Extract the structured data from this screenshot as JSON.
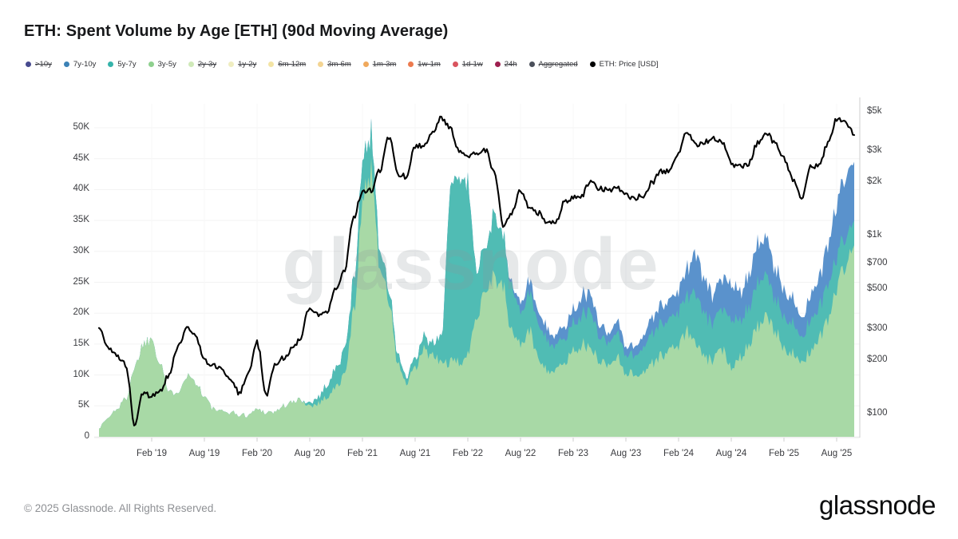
{
  "title": "ETH: Spent Volume by Age [ETH] (90d Moving Average)",
  "legend": {
    "items": [
      {
        "label": ">10y",
        "color": "#474a8f",
        "enabled": false
      },
      {
        "label": "7y-10y",
        "color": "#3c82b6",
        "enabled": true
      },
      {
        "label": "5y-7y",
        "color": "#35b3aa",
        "enabled": true
      },
      {
        "label": "3y-5y",
        "color": "#8ed08e",
        "enabled": true
      },
      {
        "label": "2y-3y",
        "color": "#cfe9b8",
        "enabled": false
      },
      {
        "label": "1y-2y",
        "color": "#efedc0",
        "enabled": false
      },
      {
        "label": "6m-12m",
        "color": "#f3e4a4",
        "enabled": false
      },
      {
        "label": "3m-6m",
        "color": "#f3d492",
        "enabled": false
      },
      {
        "label": "1m-3m",
        "color": "#f0a95c",
        "enabled": false
      },
      {
        "label": "1w-1m",
        "color": "#ec7a4e",
        "enabled": false
      },
      {
        "label": "1d-1w",
        "color": "#d9545e",
        "enabled": false
      },
      {
        "label": "24h",
        "color": "#9e1f4f",
        "enabled": false
      },
      {
        "label": "Aggregated",
        "color": "#4a4f5a",
        "enabled": false
      },
      {
        "label": "ETH: Price [USD]",
        "color": "#000000",
        "enabled": true
      }
    ]
  },
  "watermark": "glassnode",
  "footer": {
    "copyright": "© 2025 Glassnode. All Rights Reserved.",
    "logo": "glassnode"
  },
  "chart_data": {
    "type": "area",
    "stacked": true,
    "interval": "monthly",
    "x_start": "Aug 2018",
    "x_end": "Oct 2025",
    "title": "ETH: Spent Volume by Age [ETH] (90d Moving Average)",
    "left_axis": {
      "unit": "K ETH",
      "ticks": [
        0,
        5,
        10,
        15,
        20,
        25,
        30,
        35,
        40,
        45,
        50
      ],
      "tick_labels": [
        "0",
        "5K",
        "10K",
        "15K",
        "20K",
        "25K",
        "30K",
        "35K",
        "40K",
        "45K",
        "50K"
      ]
    },
    "right_axis": {
      "unit": "USD",
      "scale": "log",
      "ticks": [
        100,
        200,
        300,
        500,
        700,
        1000,
        2000,
        3000,
        5000
      ],
      "tick_labels": [
        "$100",
        "$200",
        "$300",
        "$500",
        "$700",
        "$1k",
        "$2k",
        "$3k",
        "$5k"
      ]
    },
    "x_ticks": [
      {
        "label": "Feb '19",
        "index": 6
      },
      {
        "label": "Aug '19",
        "index": 12
      },
      {
        "label": "Feb '20",
        "index": 18
      },
      {
        "label": "Aug '20",
        "index": 24
      },
      {
        "label": "Feb '21",
        "index": 30
      },
      {
        "label": "Aug '21",
        "index": 36
      },
      {
        "label": "Feb '22",
        "index": 42
      },
      {
        "label": "Aug '22",
        "index": 48
      },
      {
        "label": "Feb '23",
        "index": 54
      },
      {
        "label": "Aug '23",
        "index": 60
      },
      {
        "label": "Feb '24",
        "index": 66
      },
      {
        "label": "Aug '24",
        "index": 72
      },
      {
        "label": "Feb '25",
        "index": 78
      },
      {
        "label": "Aug '25",
        "index": 84
      }
    ],
    "series": [
      {
        "name": "3y-5y",
        "color": "#a8d9a6",
        "unit": "K ETH",
        "values": [
          1.5,
          3,
          4.5,
          6,
          11,
          15,
          16,
          12,
          7,
          7.5,
          10,
          9,
          6.5,
          4.5,
          4,
          4,
          3.5,
          3.5,
          4.5,
          4,
          4,
          5,
          5.5,
          6,
          5,
          5.5,
          6.5,
          8,
          10,
          20,
          38,
          43,
          28,
          22,
          12,
          8.5,
          11,
          14,
          13,
          12,
          12,
          12,
          13,
          20,
          24,
          26,
          24,
          17,
          15,
          17,
          13,
          11,
          10.5,
          12,
          14,
          15,
          14,
          12.5,
          11.5,
          13,
          10.5,
          10,
          10.5,
          12,
          13,
          14,
          15,
          17,
          15,
          12.5,
          12.5,
          14,
          11.5,
          13,
          15,
          18,
          19,
          17,
          14.5,
          13.5,
          11.5,
          14,
          16,
          19,
          24,
          28,
          31
        ]
      },
      {
        "name": "5y-7y",
        "color": "#50bcb4",
        "unit": "K ETH",
        "values": [
          0,
          0,
          0,
          0,
          0,
          0,
          0,
          0,
          0,
          0,
          0,
          0,
          0,
          0,
          0,
          0,
          0,
          0,
          0,
          0,
          0,
          0,
          0,
          0,
          0.5,
          1,
          2,
          3,
          4,
          5,
          6.5,
          6,
          3,
          2,
          1.5,
          1,
          1.5,
          2,
          2,
          4,
          29,
          30,
          28,
          8,
          7,
          10,
          8,
          7,
          5,
          6,
          5.5,
          5,
          4,
          4,
          4.5,
          5,
          6,
          4,
          3.5,
          4,
          3,
          3,
          4,
          5,
          5,
          5,
          5.5,
          6,
          8,
          7,
          6,
          6.5,
          8,
          6,
          6,
          7,
          6.5,
          5.5,
          5,
          5,
          4,
          5,
          5,
          5.5,
          5,
          4.5,
          4
        ]
      },
      {
        "name": "7y-10y",
        "color": "#5a92cc",
        "unit": "K ETH",
        "values": [
          0,
          0,
          0,
          0,
          0,
          0,
          0,
          0,
          0,
          0,
          0,
          0,
          0,
          0,
          0,
          0,
          0,
          0,
          0,
          0,
          0,
          0,
          0,
          0,
          0,
          0,
          0,
          0,
          0,
          0,
          0,
          0,
          0,
          0,
          0,
          0,
          0,
          0,
          0,
          0,
          0,
          0,
          0,
          0,
          0,
          0,
          0,
          0.5,
          1.5,
          2,
          2,
          2,
          1.5,
          2,
          2,
          3,
          3,
          2,
          1.5,
          2,
          1.5,
          1.5,
          2,
          2.5,
          3,
          3,
          3.5,
          4.5,
          6.5,
          5.5,
          4.5,
          5,
          6,
          4.5,
          5,
          6.5,
          6,
          5,
          4.5,
          4,
          3,
          4,
          5,
          6.5,
          8.5,
          10,
          9.5
        ]
      }
    ],
    "price_line": {
      "name": "ETH: Price [USD]",
      "color": "#000000",
      "unit": "USD",
      "axis": "right",
      "values": [
        300,
        230,
        210,
        190,
        85,
        130,
        125,
        135,
        165,
        235,
        300,
        270,
        200,
        185,
        175,
        155,
        130,
        165,
        250,
        125,
        185,
        205,
        230,
        270,
        400,
        365,
        380,
        500,
        640,
        1250,
        1750,
        1800,
        2350,
        3600,
        2250,
        2150,
        3150,
        3250,
        3900,
        4650,
        4000,
        3050,
        2850,
        2950,
        3050,
        2250,
        1150,
        1350,
        1800,
        1450,
        1350,
        1200,
        1200,
        1550,
        1650,
        1700,
        2050,
        1850,
        1800,
        1900,
        1700,
        1630,
        1700,
        2000,
        2300,
        2350,
        2950,
        3900,
        3250,
        3400,
        3550,
        3350,
        2550,
        2450,
        2550,
        3350,
        3850,
        3300,
        2750,
        2050,
        1600,
        2450,
        2500,
        3300,
        4500,
        4350,
        3700
      ]
    }
  }
}
